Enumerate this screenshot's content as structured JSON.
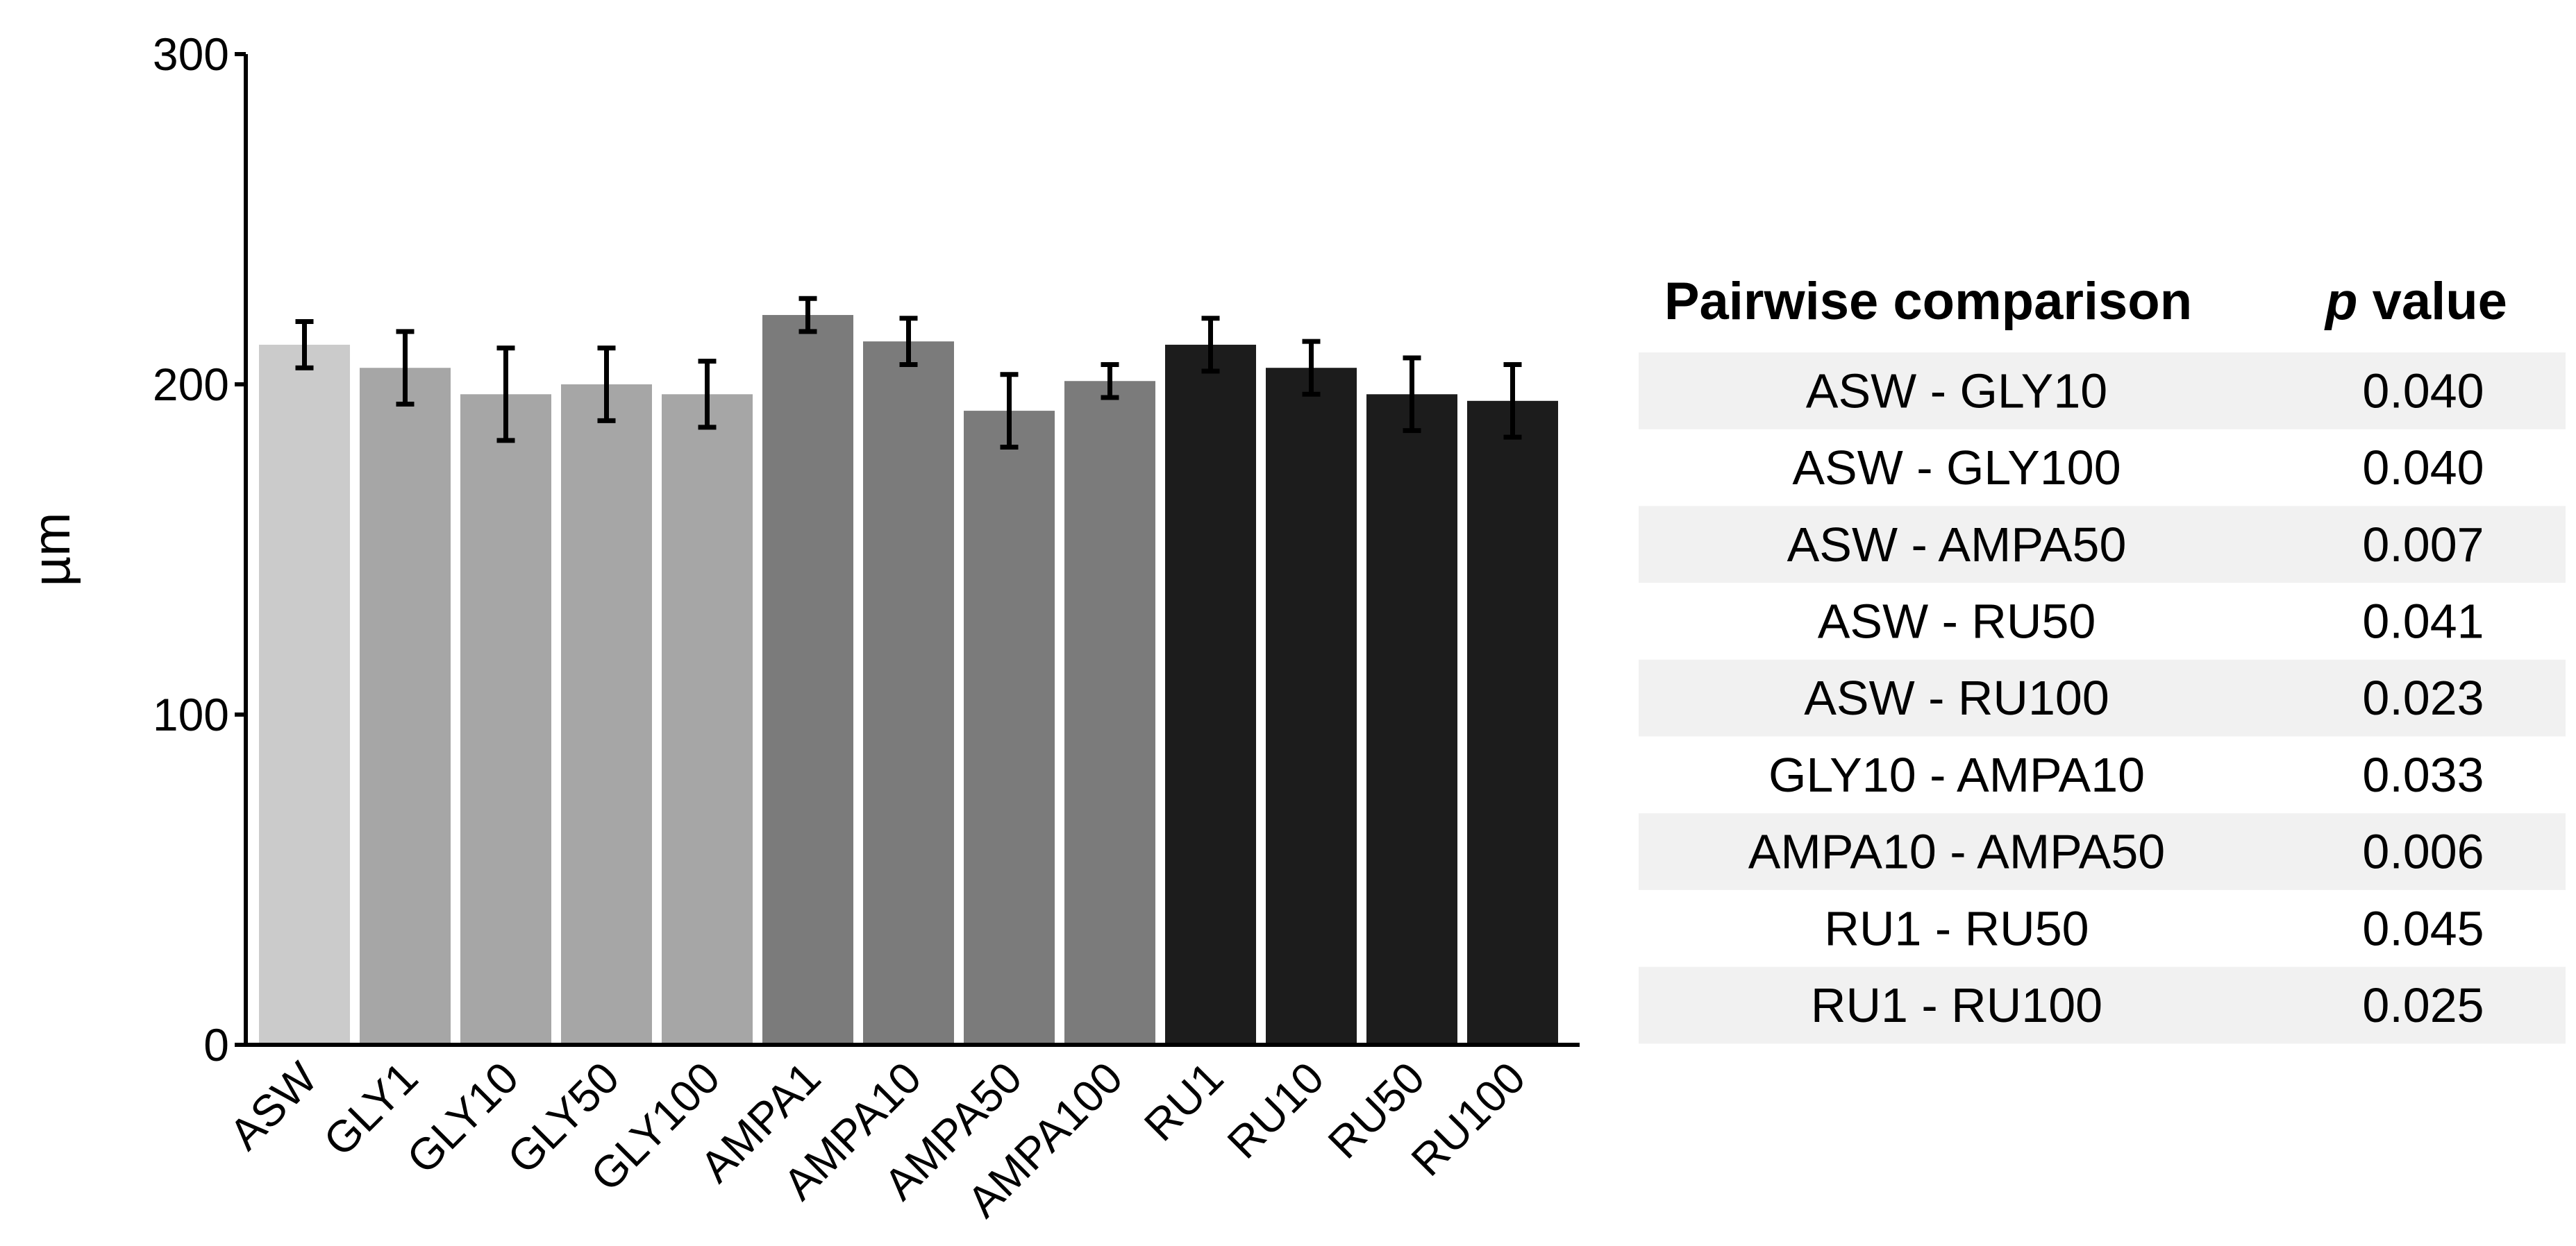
{
  "chart_data": {
    "type": "bar",
    "title": "",
    "xlabel": "",
    "ylabel": "µm",
    "ylim": [
      0,
      300
    ],
    "yticks": [
      "0",
      "100",
      "200",
      "300"
    ],
    "categories": [
      "ASW",
      "GLY1",
      "GLY10",
      "GLY50",
      "GLY100",
      "AMPA1",
      "AMPA10",
      "AMPA50",
      "AMPA100",
      "RU1",
      "RU10",
      "RU50",
      "RU100"
    ],
    "values": [
      212,
      205,
      197,
      200,
      197,
      221,
      213,
      192,
      201,
      212,
      205,
      197,
      195
    ],
    "errors": [
      7,
      11,
      14,
      11,
      10,
      5,
      7,
      11,
      5,
      8,
      8,
      11,
      11
    ],
    "bar_colors": [
      "#cbcbcb",
      "#a6a6a6",
      "#a6a6a6",
      "#a6a6a6",
      "#a6a6a6",
      "#7b7b7b",
      "#7b7b7b",
      "#7b7b7b",
      "#7b7b7b",
      "#1c1c1c",
      "#1c1c1c",
      "#1c1c1c",
      "#1c1c1c"
    ],
    "grid": false
  },
  "table": {
    "headers": {
      "comparison": "Pairwise comparison",
      "p_italic": "p",
      "p_rest": " value"
    },
    "rows": [
      {
        "comparison": "ASW - GLY10",
        "p": "0.040"
      },
      {
        "comparison": "ASW - GLY100",
        "p": "0.040"
      },
      {
        "comparison": "ASW - AMPA50",
        "p": "0.007"
      },
      {
        "comparison": "ASW - RU50",
        "p": "0.041"
      },
      {
        "comparison": "ASW - RU100",
        "p": "0.023"
      },
      {
        "comparison": "GLY10 - AMPA10",
        "p": "0.033"
      },
      {
        "comparison": "AMPA10 - AMPA50",
        "p": "0.006"
      },
      {
        "comparison": "RU1 - RU50",
        "p": "0.045"
      },
      {
        "comparison": "RU1 - RU100",
        "p": "0.025"
      }
    ],
    "stripe_color": "#f1f1f1"
  }
}
